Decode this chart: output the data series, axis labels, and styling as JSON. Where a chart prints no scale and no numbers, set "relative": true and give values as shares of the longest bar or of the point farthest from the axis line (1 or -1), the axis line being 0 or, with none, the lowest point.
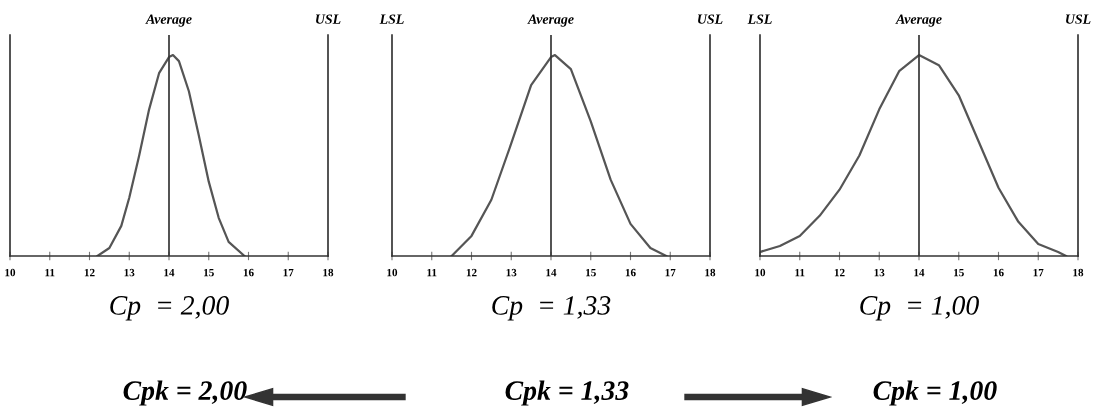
{
  "chart_data": [
    {
      "type": "line",
      "relative": true,
      "xlabel": "Cp  = 2,00",
      "annotations": [
        "USL",
        "Cpk = 2,00"
      ],
      "xlim": [
        10,
        18
      ],
      "xticks": [
        10,
        11,
        12,
        13,
        14,
        15,
        16,
        17,
        18
      ],
      "grid": false,
      "marker": "none",
      "line_style": "solid",
      "series": [
        {
          "color": "#555555",
          "x": [
            12.2,
            12.5,
            12.8,
            13,
            13.25,
            13.5,
            13.75,
            14,
            14.1,
            14.25,
            14.5,
            14.75,
            15,
            15.25,
            15.5,
            15.9
          ],
          "values": [
            0,
            0.04,
            0.15,
            0.29,
            0.5,
            0.73,
            0.91,
            0.99,
            1,
            0.97,
            0.82,
            0.6,
            0.37,
            0.19,
            0.07,
            0
          ]
        }
      ],
      "ref_lines": [
        {
          "axis": "x",
          "value": 14,
          "label": "Average",
          "color": "#333333"
        }
      ]
    },
    {
      "type": "line",
      "relative": true,
      "xlabel": "Cp  = 1,33",
      "annotations": [
        "LSL",
        "USL",
        "Cpk = 1,33"
      ],
      "xlim": [
        10,
        18
      ],
      "xticks": [
        10,
        11,
        12,
        13,
        14,
        15,
        16,
        17,
        18
      ],
      "grid": false,
      "marker": "none",
      "line_style": "solid",
      "series": [
        {
          "color": "#555555",
          "x": [
            11.5,
            12,
            12.5,
            13,
            13.5,
            14,
            14.1,
            14.5,
            15,
            15.5,
            16,
            16.5,
            16.9
          ],
          "values": [
            0,
            0.1,
            0.28,
            0.56,
            0.85,
            0.99,
            1,
            0.93,
            0.67,
            0.38,
            0.16,
            0.04,
            0
          ]
        }
      ],
      "ref_lines": [
        {
          "axis": "x",
          "value": 14,
          "label": "Average",
          "color": "#333333"
        }
      ]
    },
    {
      "type": "line",
      "relative": true,
      "xlabel": "Cp  = 1,00",
      "annotations": [
        "LSL",
        "USL",
        "Cpk = 1,00"
      ],
      "xlim": [
        10,
        18
      ],
      "xticks": [
        10,
        11,
        12,
        13,
        14,
        15,
        16,
        17,
        18
      ],
      "grid": false,
      "marker": "none",
      "line_style": "solid",
      "series": [
        {
          "color": "#555555",
          "x": [
            10,
            10.5,
            11,
            11.5,
            12,
            12.5,
            13,
            13.5,
            14,
            14.5,
            15,
            15.5,
            16,
            16.5,
            17,
            17.5,
            17.7
          ],
          "values": [
            0.02,
            0.05,
            0.1,
            0.2,
            0.33,
            0.5,
            0.73,
            0.92,
            1,
            0.95,
            0.8,
            0.57,
            0.34,
            0.17,
            0.06,
            0.02,
            0
          ]
        }
      ],
      "ref_lines": [
        {
          "axis": "x",
          "value": 14,
          "label": "Average",
          "color": "#333333"
        }
      ]
    }
  ]
}
